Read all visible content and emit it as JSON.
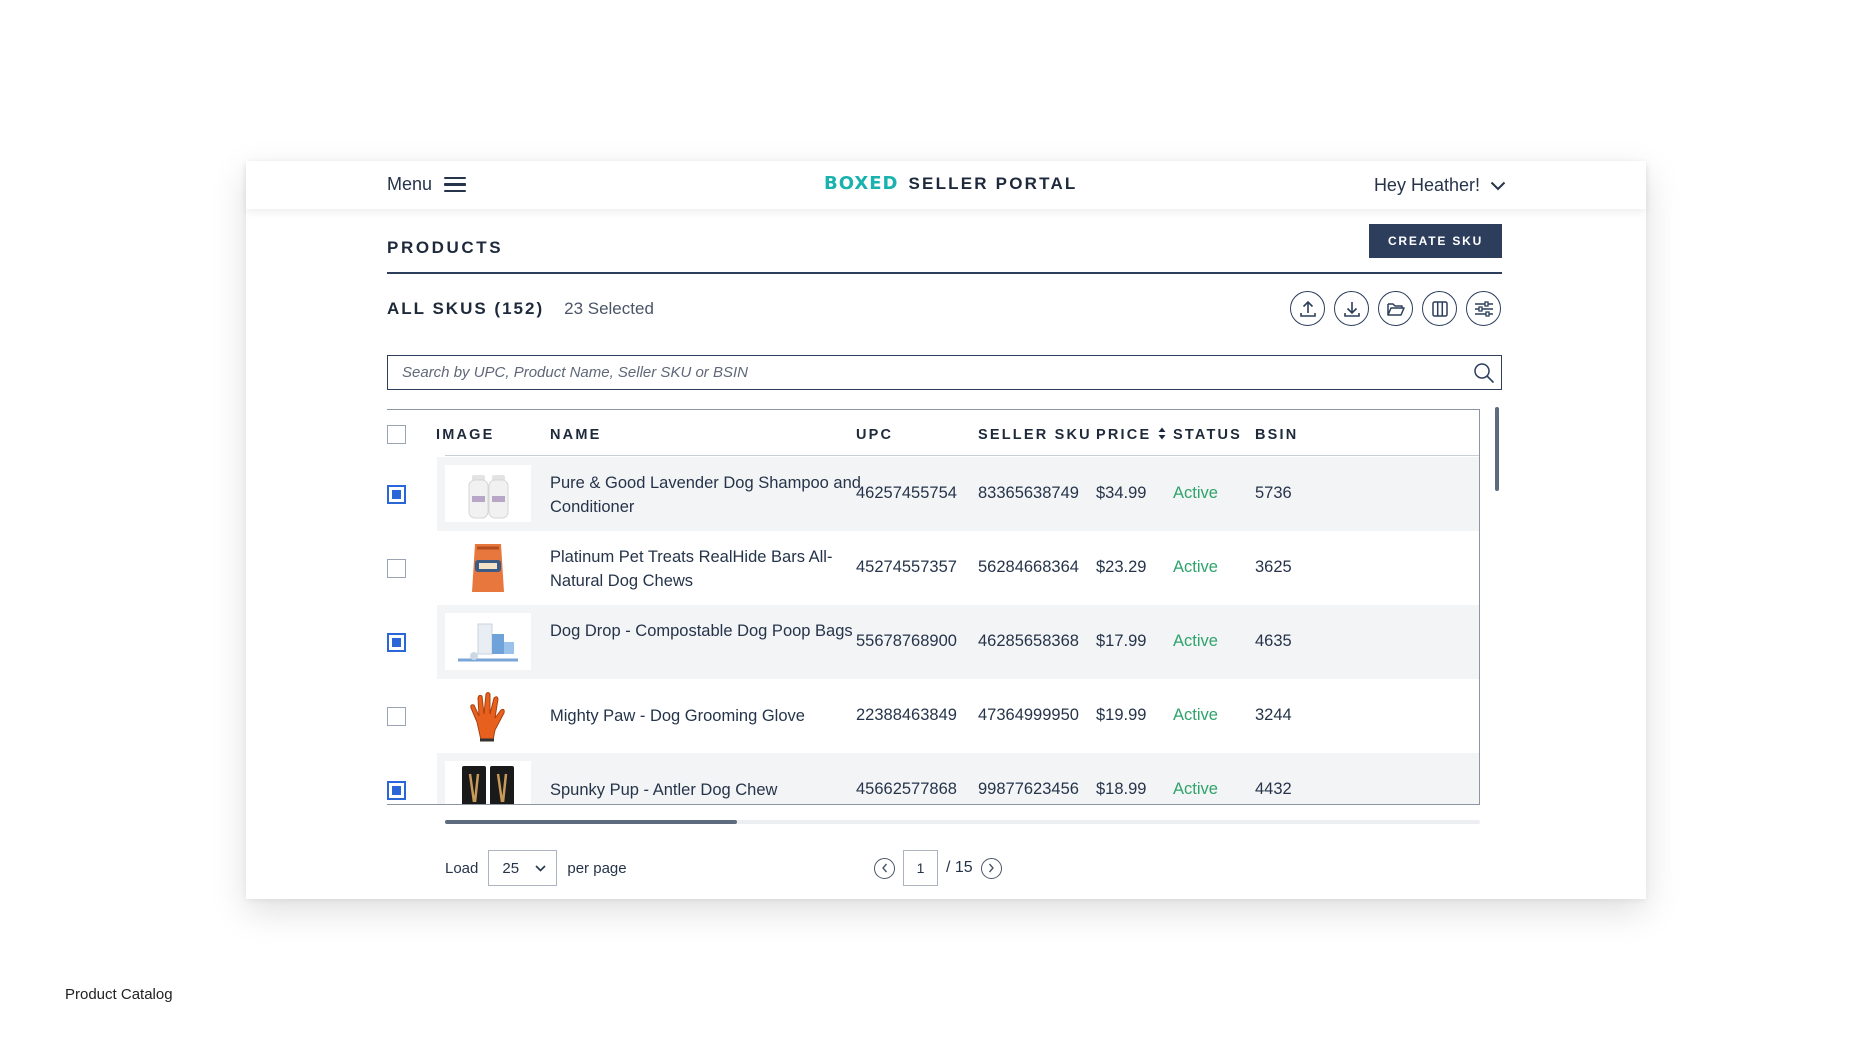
{
  "header": {
    "menu_label": "Menu",
    "logo_text": "BOXED",
    "portal_text": "SELLER PORTAL",
    "user_greeting": "Hey Heather!"
  },
  "page": {
    "title": "PRODUCTS",
    "create_button": "CREATE SKU",
    "skus_label": "ALL SKUS (152)",
    "selected_label": "23 Selected"
  },
  "toolbar": {
    "icons": [
      "upload-icon",
      "download-icon",
      "folder-icon",
      "columns-icon",
      "filter-sliders-icon"
    ]
  },
  "search": {
    "value": "",
    "placeholder": "Search by UPC, Product Name, Seller SKU or BSIN"
  },
  "table": {
    "columns": [
      "IMAGE",
      "NAME",
      "UPC",
      "SELLER SKU",
      "PRICE",
      "STATUS",
      "BSIN"
    ],
    "header_checked": false,
    "rows": [
      {
        "checked": true,
        "image": "shampoo-bottles-image",
        "name": "Pure & Good Lavender Dog Shampoo and Conditioner",
        "upc": "46257455754",
        "seller_sku": "83365638749",
        "price": "$34.99",
        "status": "Active",
        "bsin": "5736"
      },
      {
        "checked": false,
        "image": "dog-treats-bag-image",
        "name": "Platinum Pet Treats RealHide Bars All-Natural Dog Chews",
        "upc": "45274557357",
        "seller_sku": "56284668364",
        "price": "$23.29",
        "status": "Active",
        "bsin": "3625"
      },
      {
        "checked": true,
        "image": "poop-bags-image",
        "name": "Dog Drop - Compostable Dog Poop Bags",
        "upc": "55678768900",
        "seller_sku": "46285658368",
        "price": "$17.99",
        "status": "Active",
        "bsin": "4635"
      },
      {
        "checked": false,
        "image": "grooming-glove-image",
        "name": "Mighty Paw - Dog Grooming Glove",
        "upc": "22388463849",
        "seller_sku": "47364999950",
        "price": "$19.99",
        "status": "Active",
        "bsin": "3244"
      },
      {
        "checked": true,
        "image": "antler-chew-image",
        "name": "Spunky Pup - Antler Dog Chew",
        "upc": "45662577868",
        "seller_sku": "99877623456",
        "price": "$18.99",
        "status": "Active",
        "bsin": "4432"
      }
    ]
  },
  "pagination": {
    "load_label": "Load",
    "per_page_value": "25",
    "per_page_label": "per page",
    "current_page": "1",
    "total_pages": "/ 15"
  },
  "caption": "Product Catalog",
  "colors": {
    "brand_teal": "#19b2ae",
    "navy": "#2c3e5c",
    "active_green": "#2ea36b",
    "checkbox_blue": "#2b66d9"
  }
}
